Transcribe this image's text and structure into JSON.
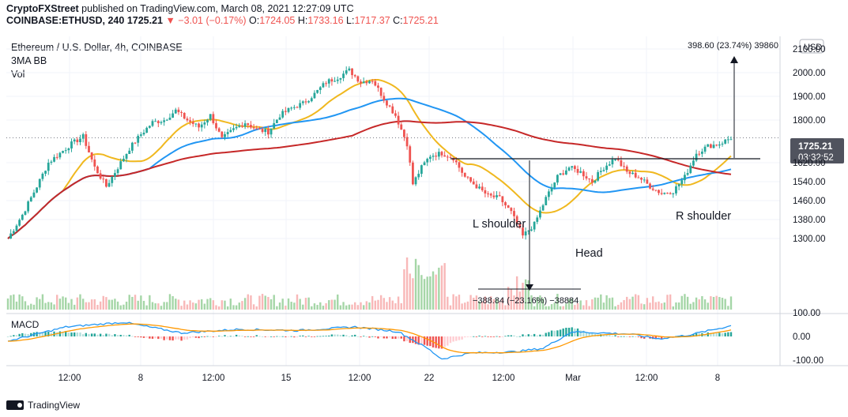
{
  "header": {
    "line1": {
      "publisher": "CryptoFXStreet",
      "text": "published on TradingView.com, March 08, 2021 12:27:09 UTC"
    },
    "line2": {
      "symbol": "COINBASE:ETHUSD, 240",
      "last": "1725.21",
      "change": "▼ −3.01 (−0.17%)",
      "o_label": "O:",
      "o": "1724.05",
      "h_label": "H:",
      "h": "1733.16",
      "l_label": "L:",
      "l": "1717.37",
      "c_label": "C:",
      "c": "1725.21"
    }
  },
  "legend": {
    "title": "Ethereum / U.S. Dollar, 4h, COINBASE",
    "indicator": "3MA BB",
    "volume": "Vol"
  },
  "price_badge": {
    "price": "1725.21",
    "countdown": "03:32:52"
  },
  "currency_label": "USD",
  "annotations": {
    "measure_up": "398.60 (23.74%) 39860",
    "measure_down": "−388.84 (−23.16%) −38884",
    "l_shoulder": "L shoulder",
    "head": "Head",
    "r_shoulder": "R shoulder"
  },
  "macd_label": "MACD",
  "footer": {
    "brand": "TradingView"
  },
  "colors": {
    "up": "#26a69a",
    "down": "#ef5350",
    "ma_fast": "#f0b81f",
    "ma_mid": "#2196f3",
    "ma_slow": "#c62828"
  },
  "chart_data": {
    "type": "candlestick",
    "title": "Ethereum / U.S. Dollar, 4h, COINBASE",
    "price_axis": {
      "ticks": [
        "2100.00",
        "2000.00",
        "1900.00",
        "1800.00",
        "1620.00",
        "1540.00",
        "1460.00",
        "1380.00",
        "1300.00"
      ]
    },
    "time_axis": {
      "ticks": [
        "12:00",
        "8",
        "12:00",
        "15",
        "12:00",
        "22",
        "12:00",
        "Mar",
        "12:00",
        "8"
      ]
    },
    "macd_axis": {
      "ticks": [
        "100.00",
        "0.00",
        "-100.00"
      ]
    },
    "key_levels": {
      "neckline": 1690,
      "measured_target": 2115,
      "head_low": 1290
    },
    "anchors": [
      [
        0,
        1300
      ],
      [
        5,
        1400
      ],
      [
        10,
        1520
      ],
      [
        14,
        1620
      ],
      [
        18,
        1660
      ],
      [
        22,
        1700
      ],
      [
        26,
        1730
      ],
      [
        30,
        1600
      ],
      [
        34,
        1520
      ],
      [
        38,
        1600
      ],
      [
        42,
        1680
      ],
      [
        46,
        1740
      ],
      [
        50,
        1790
      ],
      [
        54,
        1800
      ],
      [
        58,
        1840
      ],
      [
        62,
        1800
      ],
      [
        66,
        1770
      ],
      [
        70,
        1820
      ],
      [
        74,
        1720
      ],
      [
        78,
        1760
      ],
      [
        82,
        1790
      ],
      [
        86,
        1760
      ],
      [
        90,
        1750
      ],
      [
        94,
        1820
      ],
      [
        98,
        1850
      ],
      [
        102,
        1870
      ],
      [
        106,
        1910
      ],
      [
        110,
        1960
      ],
      [
        114,
        1980
      ],
      [
        118,
        2010
      ],
      [
        122,
        1960
      ],
      [
        126,
        1970
      ],
      [
        130,
        1890
      ],
      [
        134,
        1820
      ],
      [
        138,
        1700
      ],
      [
        140,
        1530
      ],
      [
        143,
        1600
      ],
      [
        146,
        1650
      ],
      [
        150,
        1660
      ],
      [
        154,
        1640
      ],
      [
        158,
        1560
      ],
      [
        162,
        1520
      ],
      [
        166,
        1480
      ],
      [
        170,
        1470
      ],
      [
        174,
        1410
      ],
      [
        178,
        1310
      ],
      [
        182,
        1360
      ],
      [
        186,
        1470
      ],
      [
        190,
        1560
      ],
      [
        194,
        1600
      ],
      [
        198,
        1580
      ],
      [
        202,
        1540
      ],
      [
        206,
        1600
      ],
      [
        210,
        1640
      ],
      [
        214,
        1580
      ],
      [
        218,
        1560
      ],
      [
        222,
        1520
      ],
      [
        226,
        1490
      ],
      [
        230,
        1500
      ],
      [
        234,
        1560
      ],
      [
        238,
        1660
      ],
      [
        242,
        1690
      ],
      [
        246,
        1700
      ],
      [
        250,
        1725
      ]
    ],
    "macd": [
      [
        0,
        -20
      ],
      [
        20,
        40
      ],
      [
        40,
        60
      ],
      [
        60,
        15
      ],
      [
        80,
        30
      ],
      [
        100,
        25
      ],
      [
        120,
        40
      ],
      [
        135,
        20
      ],
      [
        145,
        -50
      ],
      [
        150,
        -95
      ],
      [
        160,
        -70
      ],
      [
        175,
        -65
      ],
      [
        185,
        -50
      ],
      [
        195,
        20
      ],
      [
        205,
        15
      ],
      [
        215,
        10
      ],
      [
        225,
        -10
      ],
      [
        235,
        5
      ],
      [
        250,
        45
      ]
    ]
  }
}
